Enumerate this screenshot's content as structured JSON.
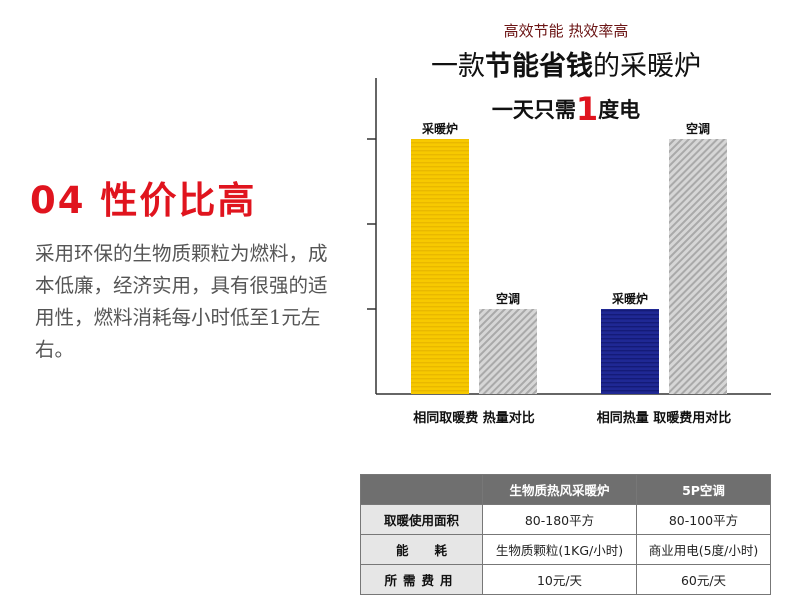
{
  "left": {
    "heading": "04 性价比高",
    "description": "采用环保的生物质颗粒为燃料，成本低廉，经济实用，具有很强的适用性，燃料消耗每小时低至1元左右。"
  },
  "poster": {
    "tagline": "高效节能 热效率高",
    "headline_pre": "一款",
    "headline_bold": "节能省钱",
    "headline_post": "的采暖炉",
    "subline_pre": "一天只需",
    "subline_big": "1",
    "subline_post": "度电"
  },
  "chart_data": {
    "type": "bar",
    "groups": [
      {
        "label": "相同取暖费 热量对比",
        "bars": [
          {
            "name": "采暖炉",
            "value": 3,
            "color": "#f5c400"
          },
          {
            "name": "空调",
            "value": 1,
            "color": "#bdbdbd"
          }
        ]
      },
      {
        "label": "相同热量  取暖费用对比",
        "bars": [
          {
            "name": "采暖炉",
            "value": 1,
            "color": "#1c2590"
          },
          {
            "name": "空调",
            "value": 3,
            "color": "#bdbdbd"
          }
        ]
      }
    ],
    "ylim": [
      0,
      4
    ],
    "yticks": [
      1,
      2,
      3
    ],
    "grid": false
  },
  "table": {
    "headers": [
      "",
      "生物质热风采暖炉",
      "5P空调"
    ],
    "rows": [
      {
        "label": "取暖使用面积",
        "c1": "80-180平方",
        "c2": "80-100平方"
      },
      {
        "label": "能      耗",
        "c1": "生物质颗粒(1KG/小时)",
        "c2": "商业用电(5度/小时)"
      },
      {
        "label": "所需费用",
        "c1": "10元/天",
        "c2": "60元/天"
      }
    ]
  }
}
